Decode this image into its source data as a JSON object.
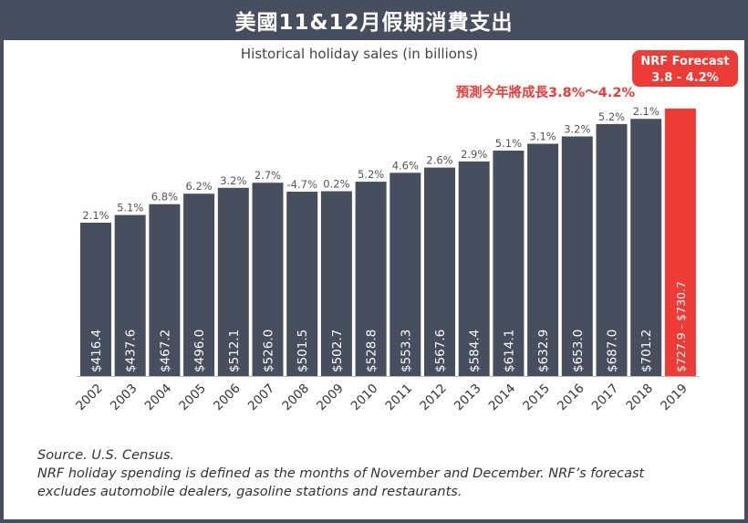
{
  "header": {
    "title": "美國11&12月假期消費支出"
  },
  "chart_data": {
    "type": "bar",
    "title": "Historical holiday sales (in billions)",
    "categories": [
      "2002",
      "2003",
      "2004",
      "2005",
      "2006",
      "2007",
      "2008",
      "2009",
      "2010",
      "2011",
      "2012",
      "2013",
      "2014",
      "2015",
      "2016",
      "2017",
      "2018",
      "2019"
    ],
    "values": [
      416.4,
      437.6,
      467.2,
      496.0,
      512.1,
      526.0,
      501.5,
      502.7,
      528.8,
      553.3,
      567.6,
      584.4,
      614.1,
      632.9,
      653.0,
      687.0,
      701.2,
      729.3
    ],
    "value_labels": [
      "$416.4",
      "$437.6",
      "$467.2",
      "$496.0",
      "$512.1",
      "$526.0",
      "$501.5",
      "$502.7",
      "$528.8",
      "$553.3",
      "$567.6",
      "$584.4",
      "$614.1",
      "$632.9",
      "$653.0",
      "$687.0",
      "$701.2",
      "$727.9 - $730.7"
    ],
    "growth_labels": [
      "2.1%",
      "5.1%",
      "6.8%",
      "6.2%",
      "3.2%",
      "2.7%",
      "-4.7%",
      "0.2%",
      "5.2%",
      "4.6%",
      "2.6%",
      "2.9%",
      "5.1%",
      "3.1%",
      "3.2%",
      "5.2%",
      "2.1%",
      ""
    ],
    "forecast_range": [
      727.9,
      730.7
    ],
    "colors": {
      "bar": "#474f5e",
      "forecast_bar": "#ef3b36",
      "header": "#474f5e"
    },
    "forecast_box": {
      "title": "NRF Forecast",
      "range": "3.8 - 4.2%"
    },
    "annotation": "預測今年將成長3.8%～4.2%"
  },
  "footer": {
    "source": "Source. U.S. Census.",
    "note_line1": "NRF holiday spending is defined as the months of November and December. NRF’s forecast",
    "note_line2": "excludes automobile dealers, gasoline stations and restaurants."
  }
}
